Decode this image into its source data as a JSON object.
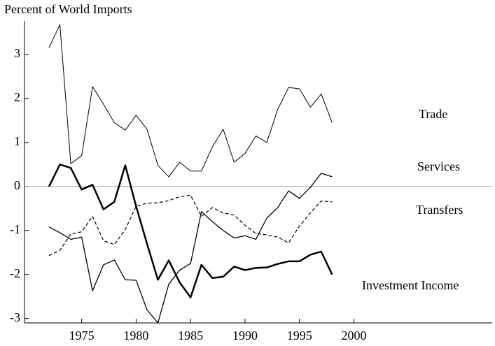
{
  "chart_data": {
    "type": "line",
    "ylabel": "Percent of World Imports",
    "x": [
      1972,
      1973,
      1974,
      1975,
      1976,
      1977,
      1978,
      1979,
      1980,
      1981,
      1982,
      1983,
      1984,
      1985,
      1986,
      1987,
      1988,
      1989,
      1990,
      1991,
      1992,
      1993,
      1994,
      1995,
      1996,
      1997,
      1998
    ],
    "series": [
      {
        "name": "Trade",
        "color": "#000000",
        "width": 1,
        "dash": false,
        "values": [
          3.15,
          3.68,
          0.52,
          0.7,
          2.27,
          1.87,
          1.45,
          1.28,
          1.62,
          1.3,
          0.48,
          0.22,
          0.55,
          0.35,
          0.35,
          0.9,
          1.3,
          0.55,
          0.75,
          1.15,
          1.0,
          1.75,
          2.25,
          2.22,
          1.8,
          2.1,
          1.45
        ]
      },
      {
        "name": "Services",
        "color": "#000000",
        "width": 1.3,
        "dash": false,
        "values": [
          -0.92,
          -1.05,
          -1.2,
          -1.15,
          -2.37,
          -1.78,
          -1.67,
          -2.12,
          -2.13,
          -2.8,
          -3.1,
          -2.22,
          -1.9,
          -1.75,
          -0.57,
          -0.8,
          -1.0,
          -1.17,
          -1.12,
          -1.2,
          -0.72,
          -0.48,
          -0.1,
          -0.27,
          -0.02,
          0.3,
          0.22
        ]
      },
      {
        "name": "Transfers",
        "color": "#000000",
        "width": 1.2,
        "dash": true,
        "values": [
          -1.57,
          -1.45,
          -1.08,
          -1.03,
          -0.68,
          -1.23,
          -1.32,
          -0.98,
          -0.45,
          -0.38,
          -0.37,
          -0.32,
          -0.23,
          -0.2,
          -0.68,
          -0.48,
          -0.6,
          -0.65,
          -0.88,
          -1.07,
          -1.1,
          -1.15,
          -1.28,
          -0.9,
          -0.6,
          -0.33,
          -0.35
        ]
      },
      {
        "name": "Investment Income",
        "color": "#000000",
        "width": 2.5,
        "dash": false,
        "values": [
          0,
          0.5,
          0.42,
          -0.07,
          0.04,
          -0.52,
          -0.35,
          0.48,
          -0.45,
          -1.3,
          -2.12,
          -1.68,
          -2.18,
          -2.52,
          -1.78,
          -2.08,
          -2.05,
          -1.82,
          -1.9,
          -1.85,
          -1.84,
          -1.76,
          -1.7,
          -1.7,
          -1.55,
          -1.48,
          -2.0
        ]
      }
    ],
    "xlim": [
      1969.75,
      2012.7
    ],
    "xticks": [
      1975,
      1980,
      1985,
      1990,
      1995,
      2000
    ],
    "ylim": [
      -3.1,
      3.76
    ],
    "yticks": [
      -3,
      -2,
      -1,
      0,
      1,
      2,
      3
    ],
    "zero_line": true
  }
}
